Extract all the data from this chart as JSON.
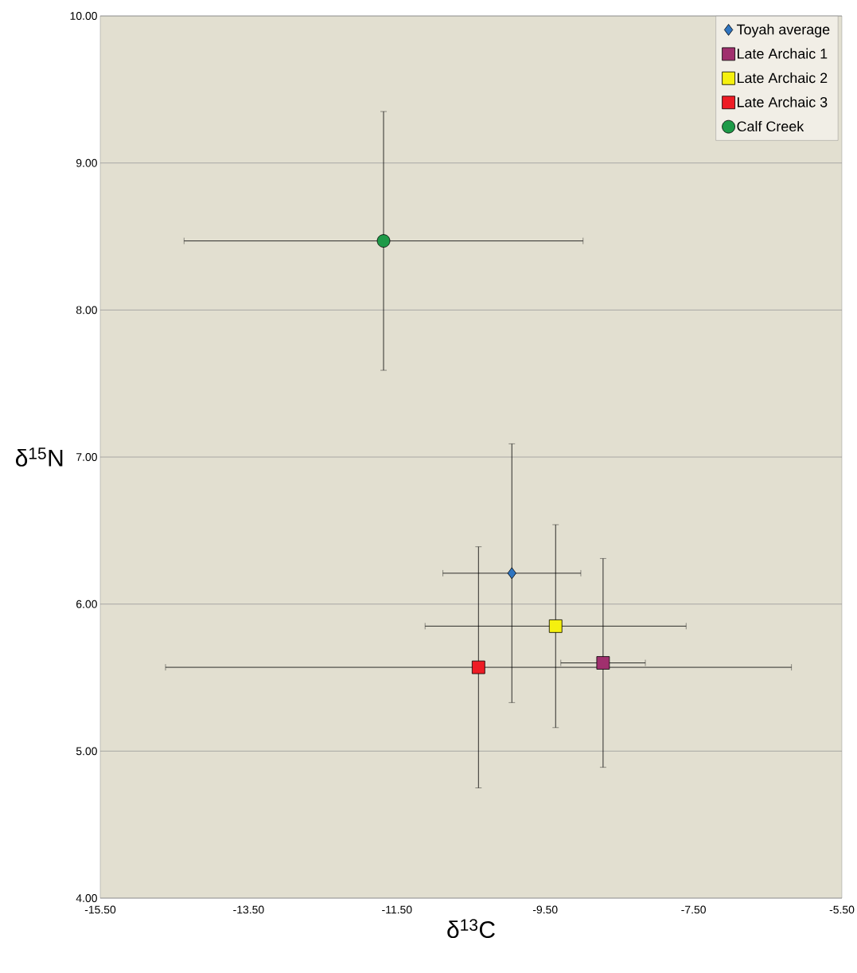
{
  "chart_data": {
    "type": "scatter",
    "xlabel": "δ$^{13}$C",
    "ylabel": "δ$^{15}$N",
    "xlim": [
      -15.5,
      -5.5
    ],
    "ylim": [
      4,
      10
    ],
    "xticks": [
      {
        "value": -15.5,
        "label": "-15.50"
      },
      {
        "value": -13.5,
        "label": "-13.50"
      },
      {
        "value": -11.5,
        "label": "-11.50"
      },
      {
        "value": -9.5,
        "label": "-9.50"
      },
      {
        "value": -7.5,
        "label": "-7.50"
      },
      {
        "value": -5.5,
        "label": "-5.50"
      }
    ],
    "yticks": [
      {
        "value": 4,
        "label": "4.00"
      },
      {
        "value": 5,
        "label": "5.00"
      },
      {
        "value": 6,
        "label": "6.00"
      },
      {
        "value": 7,
        "label": "7.00"
      },
      {
        "value": 8,
        "label": "8.00"
      },
      {
        "value": 9,
        "label": "9.00"
      },
      {
        "value": 10,
        "label": "10.00"
      }
    ],
    "grid": "y",
    "legend": "top right",
    "series": [
      {
        "name": "Toyah average",
        "color": "#2f75c0",
        "marker": "diamond",
        "x": [
          -9.95
        ],
        "values": [
          6.21
        ],
        "xerrors": [
          0.93
        ],
        "errors": [
          0.88
        ]
      },
      {
        "name": "Late Archaic 1",
        "color": "#a0306e",
        "marker": "square",
        "x": [
          -8.72
        ],
        "values": [
          5.6
        ],
        "xerrors": [
          0.57
        ],
        "errors": [
          0.71
        ]
      },
      {
        "name": "Late Archaic 2",
        "color": "#f5f00f",
        "marker": "square",
        "x": [
          -9.36
        ],
        "values": [
          5.85
        ],
        "xerrors": [
          1.76
        ],
        "errors": [
          0.69
        ]
      },
      {
        "name": "Late Archaic 3",
        "color": "#ee1c25",
        "marker": "square",
        "x": [
          -10.4
        ],
        "values": [
          5.57
        ],
        "xerrors": [
          4.22
        ],
        "errors": [
          0.82
        ]
      },
      {
        "name": "Calf Creek",
        "color": "#1e9a48",
        "marker": "circle",
        "x": [
          -11.68
        ],
        "values": [
          8.47
        ],
        "xerrors": [
          2.69
        ],
        "errors": [
          0.88
        ]
      }
    ]
  }
}
